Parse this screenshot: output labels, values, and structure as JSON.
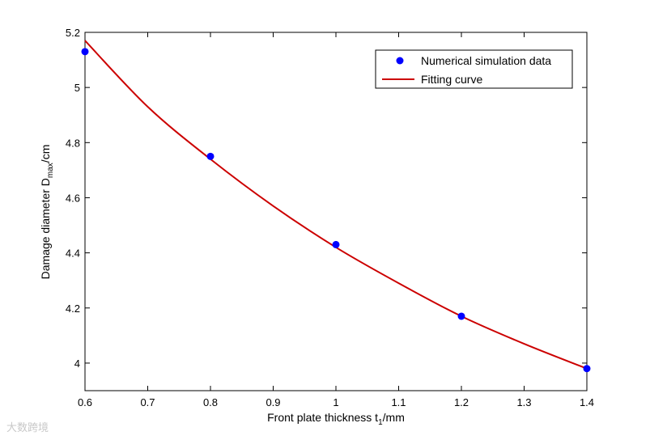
{
  "chart_data": {
    "type": "scatter",
    "xlabel": "Front plate thickness t",
    "xlabel_sub": "1",
    "xlabel_suffix": "/mm",
    "ylabel": "Damage diameter D",
    "ylabel_sub": "max",
    "ylabel_suffix": "/cm",
    "xlim": [
      0.6,
      1.4
    ],
    "ylim": [
      3.9,
      5.2
    ],
    "xticks": [
      "0.6",
      "0.7",
      "0.8",
      "0.9",
      "1",
      "1.1",
      "1.2",
      "1.3",
      "1.4"
    ],
    "yticks": [
      "4",
      "4.2",
      "4.4",
      "4.6",
      "4.8",
      "5",
      "5.2"
    ],
    "grid": false,
    "legend_position": "top-right",
    "series": [
      {
        "name": "Numerical simulation data",
        "kind": "scatter",
        "color": "#0000ff",
        "x": [
          0.6,
          0.8,
          1.0,
          1.2,
          1.4
        ],
        "y": [
          5.13,
          4.75,
          4.43,
          4.17,
          3.98
        ]
      },
      {
        "name": "Fitting curve",
        "kind": "line",
        "color": "#cc0000",
        "x": [
          0.6,
          0.7,
          0.8,
          0.9,
          1.0,
          1.1,
          1.2,
          1.3,
          1.4
        ],
        "y": [
          5.17,
          4.93,
          4.74,
          4.57,
          4.42,
          4.29,
          4.17,
          4.07,
          3.98
        ]
      }
    ]
  },
  "watermark": "大数跨境"
}
